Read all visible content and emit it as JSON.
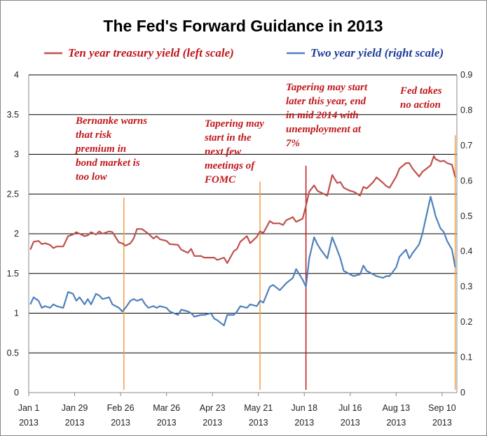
{
  "chart_data": {
    "type": "line",
    "title": "The Fed's Forward Guidance in 2013",
    "x_tick_labels": [
      {
        "date": "2013-01-01",
        "month": "Jan 1",
        "year": "2013"
      },
      {
        "date": "2013-01-29",
        "month": "Jan 29",
        "year": "2013"
      },
      {
        "date": "2013-02-26",
        "month": "Feb 26",
        "year": "2013"
      },
      {
        "date": "2013-03-26",
        "month": "Mar 26",
        "year": "2013"
      },
      {
        "date": "2013-04-23",
        "month": "Apr 23",
        "year": "2013"
      },
      {
        "date": "2013-05-21",
        "month": "May 21",
        "year": "2013"
      },
      {
        "date": "2013-06-18",
        "month": "Jun 18",
        "year": "2013"
      },
      {
        "date": "2013-07-16",
        "month": "Jul 16",
        "year": "2013"
      },
      {
        "date": "2013-08-13",
        "month": "Aug 13",
        "year": "2013"
      },
      {
        "date": "2013-09-10",
        "month": "Sep 10",
        "year": "2013"
      }
    ],
    "x_range": [
      "2013-01-01",
      "2013-09-19"
    ],
    "y_left": {
      "ylim": [
        0,
        4
      ],
      "ticks": [
        "0",
        "0.5",
        "1",
        "1.5",
        "2",
        "2.5",
        "3",
        "3.5",
        "4"
      ]
    },
    "y_right": {
      "ylim": [
        0,
        0.9
      ],
      "ticks": [
        "0",
        "0.1",
        "0.2",
        "0.3",
        "0.4",
        "0.5",
        "0.6",
        "0.7",
        "0.8",
        "0.9"
      ]
    },
    "grid": "horizontal",
    "legend_position": "top",
    "series": [
      {
        "name": "Ten year treasury yield (left scale)",
        "axis": "left",
        "color": "#c0504d",
        "points": [
          [
            "2013-01-02",
            1.8
          ],
          [
            "2013-01-04",
            1.9
          ],
          [
            "2013-01-07",
            1.91
          ],
          [
            "2013-01-09",
            1.87
          ],
          [
            "2013-01-11",
            1.88
          ],
          [
            "2013-01-14",
            1.86
          ],
          [
            "2013-01-16",
            1.82
          ],
          [
            "2013-01-18",
            1.84
          ],
          [
            "2013-01-22",
            1.84
          ],
          [
            "2013-01-25",
            1.97
          ],
          [
            "2013-01-28",
            1.99
          ],
          [
            "2013-01-30",
            2.02
          ],
          [
            "2013-02-01",
            2.0
          ],
          [
            "2013-02-04",
            1.97
          ],
          [
            "2013-02-06",
            1.98
          ],
          [
            "2013-02-08",
            2.02
          ],
          [
            "2013-02-11",
            1.99
          ],
          [
            "2013-02-13",
            2.03
          ],
          [
            "2013-02-15",
            2.0
          ],
          [
            "2013-02-19",
            2.03
          ],
          [
            "2013-02-21",
            2.02
          ],
          [
            "2013-02-25",
            1.89
          ],
          [
            "2013-02-27",
            1.88
          ],
          [
            "2013-03-01",
            1.85
          ],
          [
            "2013-03-04",
            1.88
          ],
          [
            "2013-03-06",
            1.94
          ],
          [
            "2013-03-08",
            2.06
          ],
          [
            "2013-03-11",
            2.06
          ],
          [
            "2013-03-13",
            2.03
          ],
          [
            "2013-03-15",
            2.0
          ],
          [
            "2013-03-18",
            1.94
          ],
          [
            "2013-03-20",
            1.97
          ],
          [
            "2013-03-22",
            1.93
          ],
          [
            "2013-03-26",
            1.91
          ],
          [
            "2013-03-28",
            1.87
          ],
          [
            "2013-04-02",
            1.86
          ],
          [
            "2013-04-04",
            1.8
          ],
          [
            "2013-04-08",
            1.76
          ],
          [
            "2013-04-10",
            1.81
          ],
          [
            "2013-04-12",
            1.72
          ],
          [
            "2013-04-16",
            1.72
          ],
          [
            "2013-04-18",
            1.7
          ],
          [
            "2013-04-22",
            1.7
          ],
          [
            "2013-04-24",
            1.7
          ],
          [
            "2013-04-26",
            1.67
          ],
          [
            "2013-04-30",
            1.7
          ],
          [
            "2013-05-02",
            1.63
          ],
          [
            "2013-05-06",
            1.78
          ],
          [
            "2013-05-08",
            1.81
          ],
          [
            "2013-05-10",
            1.9
          ],
          [
            "2013-05-14",
            1.97
          ],
          [
            "2013-05-16",
            1.88
          ],
          [
            "2013-05-20",
            1.96
          ],
          [
            "2013-05-22",
            2.03
          ],
          [
            "2013-05-24",
            2.01
          ],
          [
            "2013-05-28",
            2.16
          ],
          [
            "2013-05-30",
            2.13
          ],
          [
            "2013-06-03",
            2.13
          ],
          [
            "2013-06-05",
            2.11
          ],
          [
            "2013-06-07",
            2.17
          ],
          [
            "2013-06-11",
            2.21
          ],
          [
            "2013-06-13",
            2.15
          ],
          [
            "2013-06-17",
            2.19
          ],
          [
            "2013-06-19",
            2.35
          ],
          [
            "2013-06-21",
            2.53
          ],
          [
            "2013-06-24",
            2.61
          ],
          [
            "2013-06-26",
            2.54
          ],
          [
            "2013-06-28",
            2.52
          ],
          [
            "2013-07-02",
            2.48
          ],
          [
            "2013-07-05",
            2.74
          ],
          [
            "2013-07-08",
            2.64
          ],
          [
            "2013-07-10",
            2.65
          ],
          [
            "2013-07-12",
            2.58
          ],
          [
            "2013-07-16",
            2.54
          ],
          [
            "2013-07-18",
            2.53
          ],
          [
            "2013-07-22",
            2.48
          ],
          [
            "2013-07-24",
            2.59
          ],
          [
            "2013-07-26",
            2.57
          ],
          [
            "2013-07-30",
            2.65
          ],
          [
            "2013-08-01",
            2.71
          ],
          [
            "2013-08-05",
            2.64
          ],
          [
            "2013-08-07",
            2.6
          ],
          [
            "2013-08-09",
            2.58
          ],
          [
            "2013-08-13",
            2.72
          ],
          [
            "2013-08-15",
            2.82
          ],
          [
            "2013-08-19",
            2.89
          ],
          [
            "2013-08-21",
            2.89
          ],
          [
            "2013-08-23",
            2.82
          ],
          [
            "2013-08-27",
            2.72
          ],
          [
            "2013-08-29",
            2.78
          ],
          [
            "2013-09-03",
            2.86
          ],
          [
            "2013-09-05",
            2.98
          ],
          [
            "2013-09-06",
            2.94
          ],
          [
            "2013-09-09",
            2.91
          ],
          [
            "2013-09-11",
            2.92
          ],
          [
            "2013-09-13",
            2.89
          ],
          [
            "2013-09-16",
            2.87
          ],
          [
            "2013-09-18",
            2.71
          ]
        ]
      },
      {
        "name": "Two year yield (right scale)",
        "axis": "right",
        "color": "#4f81bd",
        "points": [
          [
            "2013-01-02",
            0.25
          ],
          [
            "2013-01-04",
            0.27
          ],
          [
            "2013-01-07",
            0.26
          ],
          [
            "2013-01-09",
            0.24
          ],
          [
            "2013-01-11",
            0.245
          ],
          [
            "2013-01-14",
            0.24
          ],
          [
            "2013-01-16",
            0.25
          ],
          [
            "2013-01-18",
            0.245
          ],
          [
            "2013-01-22",
            0.24
          ],
          [
            "2013-01-25",
            0.285
          ],
          [
            "2013-01-28",
            0.28
          ],
          [
            "2013-01-30",
            0.26
          ],
          [
            "2013-02-01",
            0.27
          ],
          [
            "2013-02-04",
            0.25
          ],
          [
            "2013-02-06",
            0.265
          ],
          [
            "2013-02-08",
            0.25
          ],
          [
            "2013-02-11",
            0.28
          ],
          [
            "2013-02-13",
            0.275
          ],
          [
            "2013-02-15",
            0.265
          ],
          [
            "2013-02-19",
            0.27
          ],
          [
            "2013-02-21",
            0.25
          ],
          [
            "2013-02-25",
            0.24
          ],
          [
            "2013-02-27",
            0.23
          ],
          [
            "2013-03-01",
            0.24
          ],
          [
            "2013-03-04",
            0.26
          ],
          [
            "2013-03-06",
            0.265
          ],
          [
            "2013-03-08",
            0.26
          ],
          [
            "2013-03-11",
            0.265
          ],
          [
            "2013-03-13",
            0.25
          ],
          [
            "2013-03-15",
            0.24
          ],
          [
            "2013-03-18",
            0.245
          ],
          [
            "2013-03-20",
            0.24
          ],
          [
            "2013-03-22",
            0.245
          ],
          [
            "2013-03-26",
            0.24
          ],
          [
            "2013-03-28",
            0.23
          ],
          [
            "2013-04-02",
            0.22
          ],
          [
            "2013-04-04",
            0.235
          ],
          [
            "2013-04-08",
            0.23
          ],
          [
            "2013-04-10",
            0.225
          ],
          [
            "2013-04-12",
            0.215
          ],
          [
            "2013-04-16",
            0.22
          ],
          [
            "2013-04-18",
            0.22
          ],
          [
            "2013-04-22",
            0.225
          ],
          [
            "2013-04-24",
            0.21
          ],
          [
            "2013-04-26",
            0.205
          ],
          [
            "2013-04-30",
            0.19
          ],
          [
            "2013-05-02",
            0.22
          ],
          [
            "2013-05-06",
            0.22
          ],
          [
            "2013-05-08",
            0.23
          ],
          [
            "2013-05-10",
            0.245
          ],
          [
            "2013-05-14",
            0.24
          ],
          [
            "2013-05-16",
            0.25
          ],
          [
            "2013-05-20",
            0.245
          ],
          [
            "2013-05-22",
            0.26
          ],
          [
            "2013-05-24",
            0.255
          ],
          [
            "2013-05-28",
            0.3
          ],
          [
            "2013-05-30",
            0.305
          ],
          [
            "2013-06-03",
            0.29
          ],
          [
            "2013-06-05",
            0.3
          ],
          [
            "2013-06-07",
            0.31
          ],
          [
            "2013-06-11",
            0.325
          ],
          [
            "2013-06-13",
            0.35
          ],
          [
            "2013-06-17",
            0.32
          ],
          [
            "2013-06-19",
            0.3
          ],
          [
            "2013-06-21",
            0.38
          ],
          [
            "2013-06-24",
            0.44
          ],
          [
            "2013-06-26",
            0.42
          ],
          [
            "2013-06-28",
            0.405
          ],
          [
            "2013-07-02",
            0.38
          ],
          [
            "2013-07-05",
            0.44
          ],
          [
            "2013-07-08",
            0.405
          ],
          [
            "2013-07-10",
            0.38
          ],
          [
            "2013-07-12",
            0.345
          ],
          [
            "2013-07-16",
            0.335
          ],
          [
            "2013-07-18",
            0.33
          ],
          [
            "2013-07-22",
            0.335
          ],
          [
            "2013-07-24",
            0.36
          ],
          [
            "2013-07-26",
            0.345
          ],
          [
            "2013-07-30",
            0.335
          ],
          [
            "2013-08-01",
            0.33
          ],
          [
            "2013-08-05",
            0.325
          ],
          [
            "2013-08-07",
            0.33
          ],
          [
            "2013-08-09",
            0.33
          ],
          [
            "2013-08-13",
            0.355
          ],
          [
            "2013-08-15",
            0.385
          ],
          [
            "2013-08-19",
            0.405
          ],
          [
            "2013-08-21",
            0.38
          ],
          [
            "2013-08-23",
            0.395
          ],
          [
            "2013-08-27",
            0.42
          ],
          [
            "2013-08-29",
            0.45
          ],
          [
            "2013-09-03",
            0.555
          ],
          [
            "2013-09-05",
            0.52
          ],
          [
            "2013-09-06",
            0.5
          ],
          [
            "2013-09-09",
            0.465
          ],
          [
            "2013-09-11",
            0.455
          ],
          [
            "2013-09-13",
            0.43
          ],
          [
            "2013-09-16",
            0.405
          ],
          [
            "2013-09-18",
            0.355
          ]
        ]
      }
    ],
    "event_lines": [
      {
        "date": "2013-02-28",
        "color": "#f0a040",
        "height": 0.614
      },
      {
        "date": "2013-05-22",
        "color": "#f0a040",
        "height": 0.664
      },
      {
        "date": "2013-06-19",
        "color": "#c0171c",
        "height": 0.714
      },
      {
        "date": "2013-09-18",
        "color": "#f0a040",
        "height": 0.81
      }
    ],
    "annotations": [
      {
        "lines": [
          "Bernanke warns",
          "that risk",
          "premium in",
          "bond market is",
          "too low"
        ]
      },
      {
        "lines": [
          "Tapering may",
          "start in the",
          "next few",
          "meetings of",
          "FOMC"
        ]
      },
      {
        "lines": [
          "Tapering may start",
          "later this year, end",
          "in mid 2014 with",
          "unemployment at",
          "7%"
        ]
      },
      {
        "lines": [
          "Fed takes",
          "no action"
        ]
      }
    ]
  }
}
